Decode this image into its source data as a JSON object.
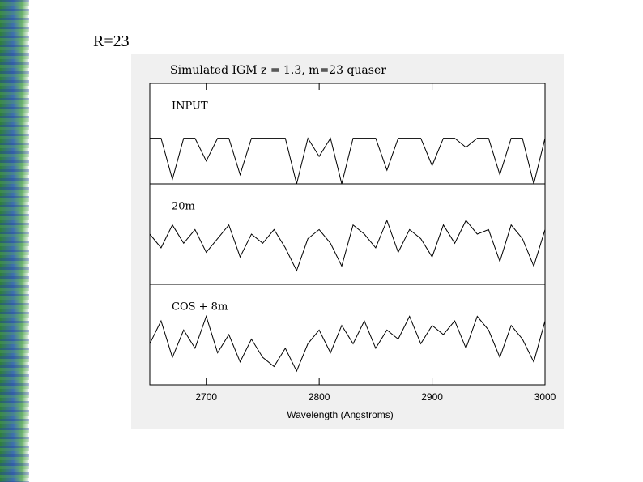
{
  "slide_title": "R=23",
  "chart_data": {
    "type": "line",
    "title": "Simulated IGM  z = 1.3, m=23 quaser",
    "x_label": "Wavelength (Angstroms)",
    "xlim": [
      2650,
      3000
    ],
    "xticks": [
      2700,
      2800,
      2900,
      3000
    ],
    "ylim": [
      0,
      2.2
    ],
    "x": [
      2650,
      2660,
      2670,
      2680,
      2690,
      2700,
      2710,
      2720,
      2730,
      2740,
      2750,
      2760,
      2770,
      2780,
      2790,
      2800,
      2810,
      2820,
      2830,
      2840,
      2850,
      2860,
      2870,
      2880,
      2890,
      2900,
      2910,
      2920,
      2930,
      2940,
      2950,
      2960,
      2970,
      2980,
      2990,
      3000
    ],
    "series": [
      {
        "name": "INPUT",
        "color": "#000000",
        "values": [
          1,
          1,
          0.1,
          1,
          1,
          0.5,
          1,
          1,
          0.2,
          1,
          1,
          1,
          1,
          0,
          1,
          0.6,
          1,
          0,
          1,
          1,
          1,
          0.3,
          1,
          1,
          1,
          0.4,
          1,
          1,
          0.8,
          1,
          1,
          0.2,
          1,
          1,
          0,
          1
        ]
      },
      {
        "name": "20m",
        "color": "#000000",
        "values": [
          1.1,
          0.8,
          1.3,
          0.9,
          1.2,
          0.7,
          1.0,
          1.3,
          0.6,
          1.1,
          0.9,
          1.2,
          0.8,
          0.3,
          1.0,
          1.2,
          0.9,
          0.4,
          1.3,
          1.1,
          0.8,
          1.4,
          0.7,
          1.2,
          1.0,
          0.6,
          1.3,
          0.9,
          1.4,
          1.1,
          1.2,
          0.5,
          1.3,
          1.0,
          0.4,
          1.2
        ]
      },
      {
        "name": "COS + 8m",
        "color": "#000000",
        "values": [
          0.9,
          1.4,
          0.6,
          1.2,
          0.8,
          1.5,
          0.7,
          1.1,
          0.5,
          1.0,
          0.6,
          0.4,
          0.8,
          0.3,
          0.9,
          1.2,
          0.7,
          1.3,
          0.9,
          1.4,
          0.8,
          1.2,
          1.0,
          1.5,
          0.9,
          1.3,
          1.1,
          1.4,
          0.8,
          1.5,
          1.2,
          0.6,
          1.3,
          1.0,
          0.5,
          1.4
        ]
      }
    ]
  }
}
